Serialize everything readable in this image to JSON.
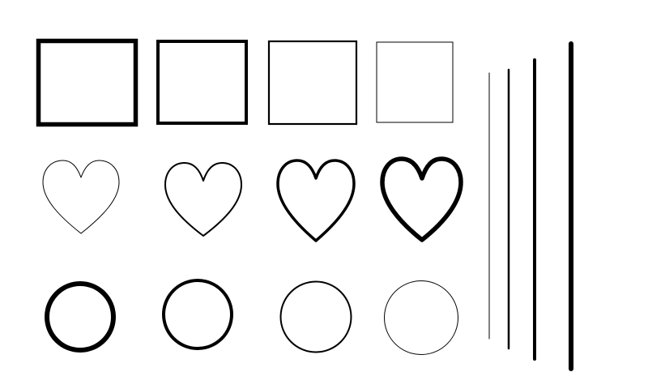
{
  "colors": {
    "background": "#ffffff",
    "stroke": "#000000"
  },
  "shapes": {
    "squares": [
      {
        "name": "square-1",
        "icon": "square-outline-icon"
      },
      {
        "name": "square-2",
        "icon": "square-outline-icon"
      },
      {
        "name": "square-3",
        "icon": "square-outline-icon"
      },
      {
        "name": "square-4",
        "icon": "square-outline-icon"
      }
    ],
    "hearts": [
      {
        "name": "heart-1",
        "icon": "heart-outline-icon"
      },
      {
        "name": "heart-2",
        "icon": "heart-outline-icon"
      },
      {
        "name": "heart-3",
        "icon": "heart-outline-icon"
      },
      {
        "name": "heart-4",
        "icon": "heart-outline-icon"
      }
    ],
    "circles": [
      {
        "name": "circle-1",
        "icon": "circle-outline-icon"
      },
      {
        "name": "circle-2",
        "icon": "circle-outline-icon"
      },
      {
        "name": "circle-3",
        "icon": "circle-outline-icon"
      },
      {
        "name": "circle-4",
        "icon": "circle-outline-icon"
      }
    ],
    "lines": [
      {
        "name": "line-1",
        "icon": "vertical-line-icon"
      },
      {
        "name": "line-2",
        "icon": "vertical-line-icon"
      },
      {
        "name": "line-3",
        "icon": "vertical-line-icon"
      },
      {
        "name": "line-4",
        "icon": "vertical-line-icon"
      }
    ]
  }
}
